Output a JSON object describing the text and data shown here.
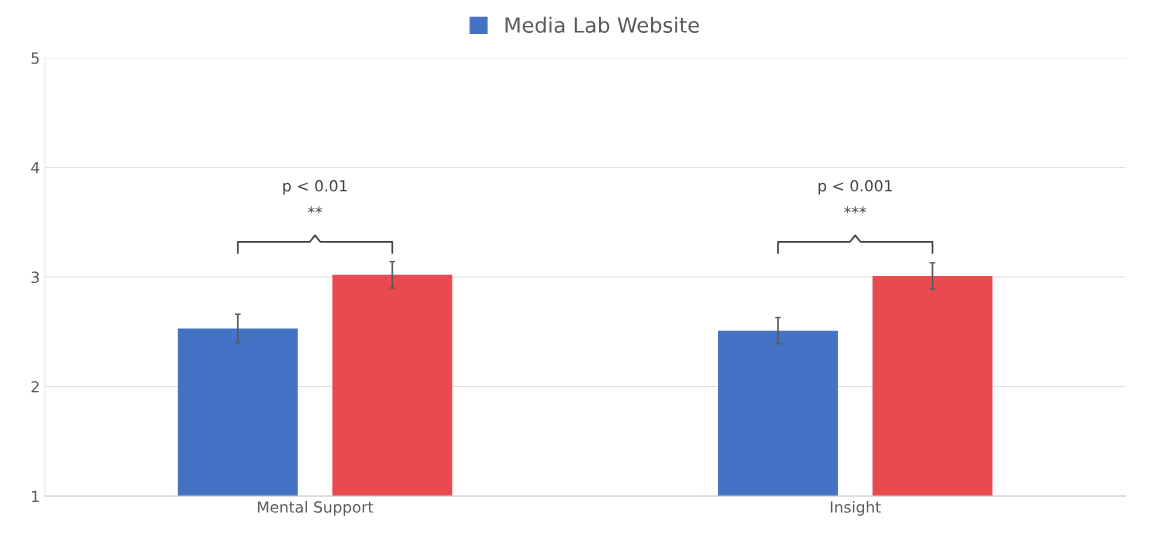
{
  "chart_data": {
    "type": "bar",
    "categories": [
      "Mental Support",
      "Insight"
    ],
    "series": [
      {
        "name": "Media Lab Website",
        "color": "#4472c4",
        "values": [
          2.53,
          2.51
        ],
        "errors": [
          0.13,
          0.12
        ]
      },
      {
        "color": "#e84a50",
        "values": [
          3.02,
          3.01
        ],
        "errors": [
          0.12,
          0.12
        ]
      }
    ],
    "ylim": [
      1,
      5
    ],
    "yticks": [
      1,
      2,
      3,
      4,
      5
    ],
    "grid": "y",
    "legend": "top",
    "annotations": [
      "p < 0.01",
      "**",
      "p < 0.001",
      "***"
    ]
  }
}
